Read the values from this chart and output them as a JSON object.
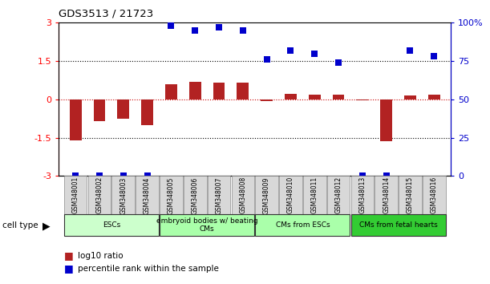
{
  "title": "GDS3513 / 21723",
  "samples": [
    "GSM348001",
    "GSM348002",
    "GSM348003",
    "GSM348004",
    "GSM348005",
    "GSM348006",
    "GSM348007",
    "GSM348008",
    "GSM348009",
    "GSM348010",
    "GSM348011",
    "GSM348012",
    "GSM348013",
    "GSM348014",
    "GSM348015",
    "GSM348016"
  ],
  "log10_ratio": [
    -1.6,
    -0.85,
    -0.75,
    -1.0,
    0.6,
    0.7,
    0.65,
    0.65,
    -0.07,
    0.22,
    0.2,
    0.18,
    -0.05,
    -1.65,
    0.15,
    0.18
  ],
  "percentile_rank": [
    0,
    0,
    0,
    0,
    98,
    95,
    97,
    95,
    76,
    82,
    80,
    74,
    0,
    0,
    82,
    78
  ],
  "ylim_left": [
    -3,
    3
  ],
  "ylim_right": [
    0,
    100
  ],
  "yticks_left": [
    -3,
    -1.5,
    0,
    1.5,
    3
  ],
  "yticks_right": [
    0,
    25,
    50,
    75,
    100
  ],
  "bar_color": "#b22222",
  "dot_color": "#0000cc",
  "hline_0_color": "#cc0000",
  "hline_dotted_color": "#000000",
  "cell_type_groups": [
    {
      "label": "ESCs",
      "start": 0,
      "end": 4,
      "color": "#ccffcc"
    },
    {
      "label": "embryoid bodies w/ beating\nCMs",
      "start": 4,
      "end": 8,
      "color": "#aaffaa"
    },
    {
      "label": "CMs from ESCs",
      "start": 8,
      "end": 12,
      "color": "#aaffaa"
    },
    {
      "label": "CMs from fetal hearts",
      "start": 12,
      "end": 16,
      "color": "#33cc33"
    }
  ],
  "legend_items": [
    {
      "label": "log10 ratio",
      "color": "#b22222"
    },
    {
      "label": "percentile rank within the sample",
      "color": "#0000cc"
    }
  ]
}
